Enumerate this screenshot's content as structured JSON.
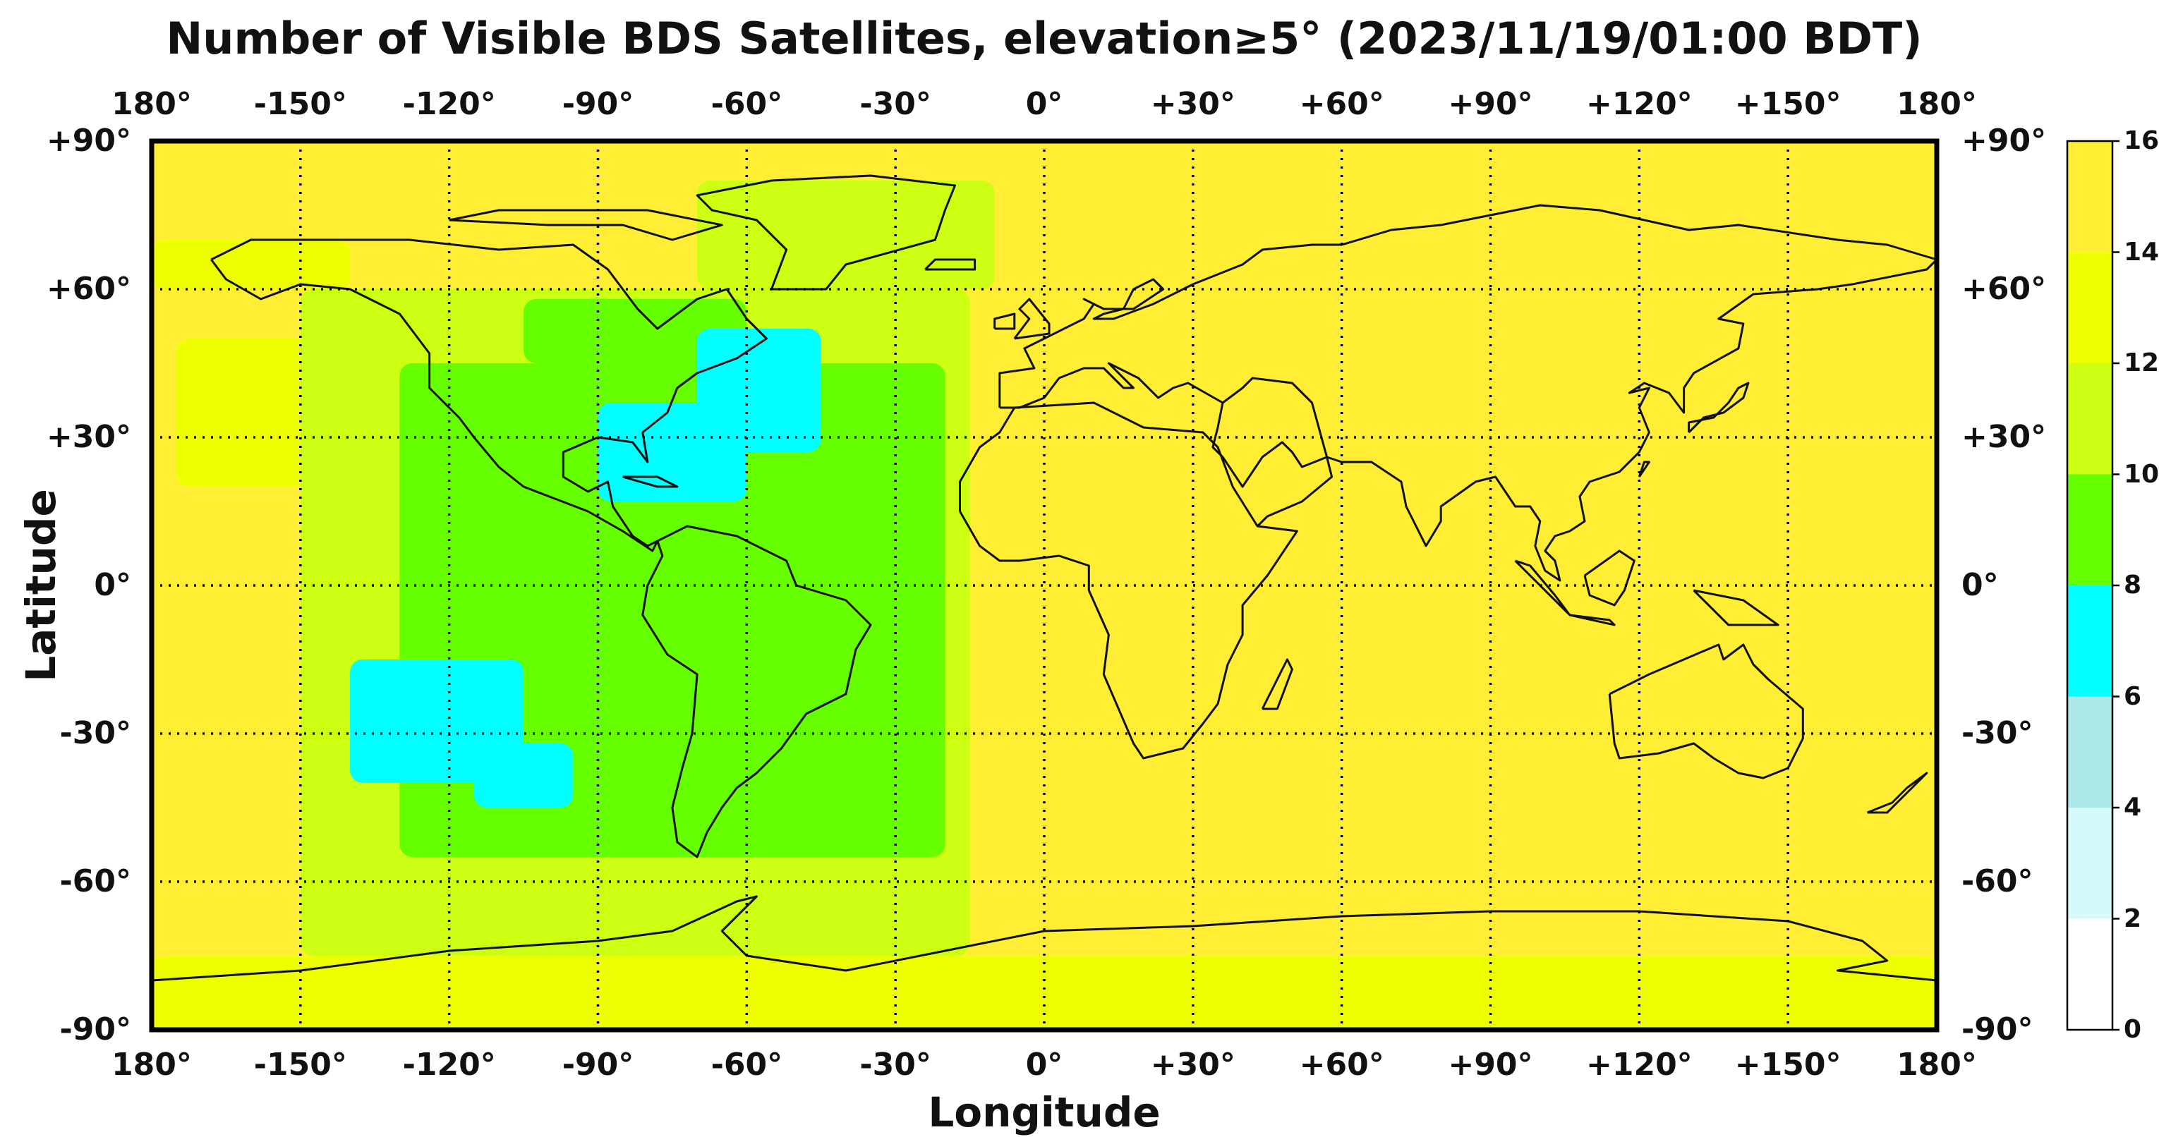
{
  "title": "Number of Visible BDS Satellites, elevation≥5° (2023/11/19/01:00 BDT)",
  "xlabel": "Longitude",
  "ylabel": "Latitude",
  "lon_ticks": [
    {
      "value": -180,
      "label": "180°"
    },
    {
      "value": -150,
      "label": "-150°"
    },
    {
      "value": -120,
      "label": "-120°"
    },
    {
      "value": -90,
      "label": "-90°"
    },
    {
      "value": -60,
      "label": "-60°"
    },
    {
      "value": -30,
      "label": "-30°"
    },
    {
      "value": 0,
      "label": "0°"
    },
    {
      "value": 30,
      "label": "+30°"
    },
    {
      "value": 60,
      "label": "+60°"
    },
    {
      "value": 90,
      "label": "+90°"
    },
    {
      "value": 120,
      "label": "+120°"
    },
    {
      "value": 150,
      "label": "+150°"
    },
    {
      "value": 180,
      "label": "180°"
    }
  ],
  "lat_ticks": [
    {
      "value": 90,
      "label": "+90°"
    },
    {
      "value": 60,
      "label": "+60°"
    },
    {
      "value": 30,
      "label": "+30°"
    },
    {
      "value": 0,
      "label": "0°"
    },
    {
      "value": -30,
      "label": "-30°"
    },
    {
      "value": -60,
      "label": "-60°"
    },
    {
      "value": -90,
      "label": "-90°"
    }
  ],
  "colorbar": {
    "ticks": [
      "0",
      "2",
      "4",
      "6",
      "8",
      "10",
      "12",
      "14",
      "16"
    ],
    "bins": [
      {
        "min": 0,
        "max": 2,
        "color": "#ffffff"
      },
      {
        "min": 2,
        "max": 4,
        "color": "#d6fafa"
      },
      {
        "min": 4,
        "max": 6,
        "color": "#ade8e8"
      },
      {
        "min": 6,
        "max": 8,
        "color": "#00ffff"
      },
      {
        "min": 8,
        "max": 10,
        "color": "#66ff00"
      },
      {
        "min": 10,
        "max": 12,
        "color": "#ccff11"
      },
      {
        "min": 12,
        "max": 14,
        "color": "#eeff00"
      },
      {
        "min": 14,
        "max": 16,
        "color": "#ffee33"
      }
    ]
  },
  "chart_data": {
    "type": "heatmap",
    "title": "Number of Visible BDS Satellites, elevation≥5° (2023/11/19/01:00 BDT)",
    "xlabel": "Longitude",
    "ylabel": "Latitude",
    "xlim": [
      -180,
      180
    ],
    "ylim": [
      -90,
      90
    ],
    "value_range": [
      0,
      16
    ],
    "background_value": 15,
    "grid": true,
    "legend": "colorbar-right",
    "regions": [
      {
        "value": 13,
        "lon": [
          -180,
          180
        ],
        "lat": [
          -90,
          -75
        ]
      },
      {
        "value": 13,
        "lon": [
          -180,
          -140
        ],
        "lat": [
          60,
          70
        ]
      },
      {
        "value": 13,
        "lon": [
          -175,
          -140
        ],
        "lat": [
          20,
          50
        ]
      },
      {
        "value": 11,
        "lon": [
          -150,
          -15
        ],
        "lat": [
          -75,
          60
        ]
      },
      {
        "value": 11,
        "lon": [
          -70,
          -10
        ],
        "lat": [
          60,
          82
        ]
      },
      {
        "value": 9,
        "lon": [
          -130,
          -20
        ],
        "lat": [
          -55,
          45
        ]
      },
      {
        "value": 9,
        "lon": [
          -105,
          -60
        ],
        "lat": [
          45,
          58
        ]
      },
      {
        "value": 7,
        "lon": [
          -140,
          -105
        ],
        "lat": [
          -40,
          -15
        ]
      },
      {
        "value": 7,
        "lon": [
          -115,
          -95
        ],
        "lat": [
          -45,
          -32
        ]
      },
      {
        "value": 7,
        "lon": [
          -70,
          -45
        ],
        "lat": [
          27,
          52
        ]
      },
      {
        "value": 7,
        "lon": [
          -90,
          -60
        ],
        "lat": [
          17,
          37
        ]
      }
    ],
    "cells": [
      {
        "lon": [
          -140,
          -105
        ],
        "lat": [
          -40,
          -15
        ],
        "value": 7
      },
      {
        "lon": [
          -115,
          -95
        ],
        "lat": [
          -45,
          -32
        ],
        "value": 7
      },
      {
        "lon": [
          -70,
          -45
        ],
        "lat": [
          27,
          52
        ],
        "value": 7
      },
      {
        "lon": [
          -90,
          -60
        ],
        "lat": [
          17,
          37
        ],
        "value": 7
      }
    ]
  }
}
